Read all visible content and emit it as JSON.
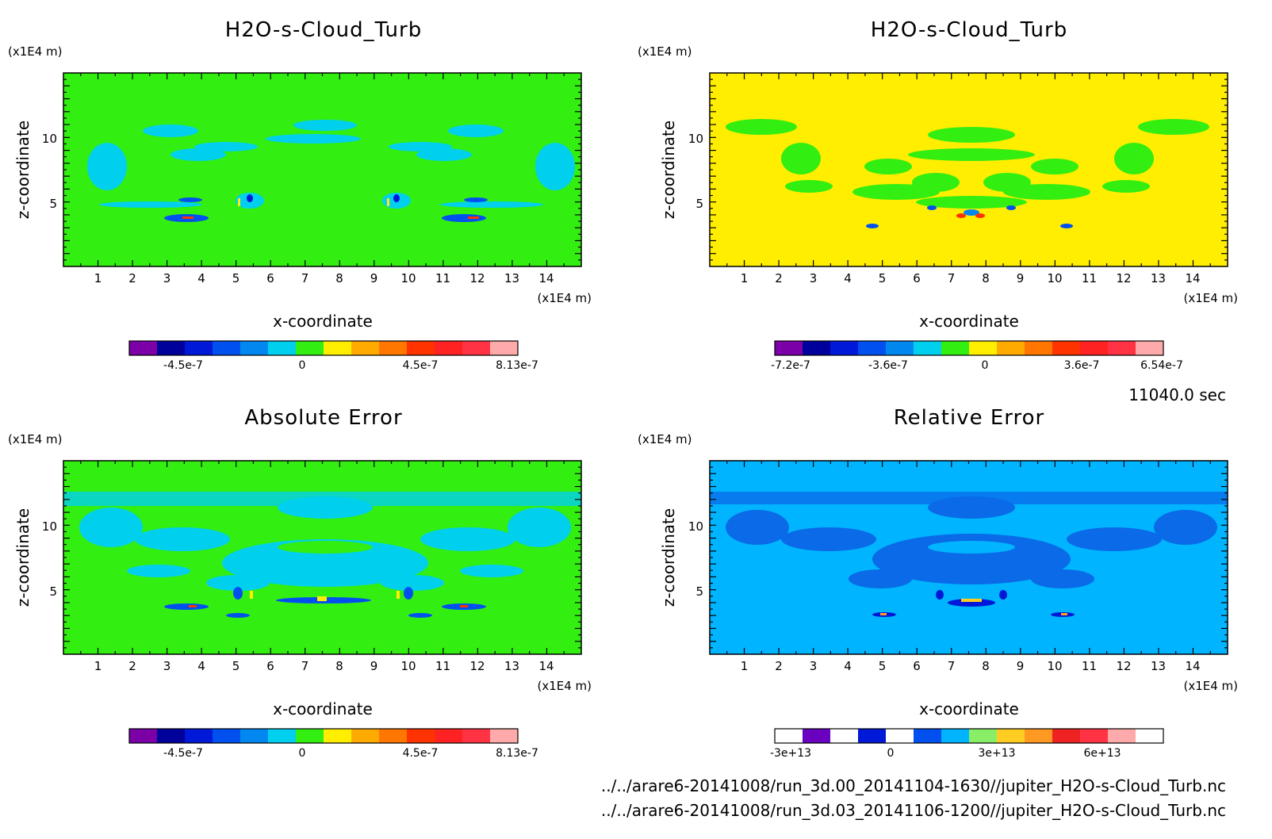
{
  "time_label": "11040.0 sec",
  "footer": {
    "line1": "../../arare6-20141008/run_3d.00_20141104-1630//jupiter_H2O-s-Cloud_Turb.nc",
    "line2": "../../arare6-20141008/run_3d.03_20141106-1200//jupiter_H2O-s-Cloud_Turb.nc"
  },
  "chart_data": [
    {
      "type": "heatmap",
      "title": "H2O-s-Cloud_Turb",
      "xlabel": "x-coordinate",
      "ylabel": "z-coordinate",
      "x_unit": "(x1E4 m)",
      "y_unit": "(x1E4 m)",
      "xlim": [
        0,
        15
      ],
      "ylim": [
        0,
        15
      ],
      "x_ticks": [
        "1",
        "2",
        "3",
        "4",
        "5",
        "6",
        "7",
        "8",
        "9",
        "10",
        "11",
        "12",
        "13",
        "14"
      ],
      "y_ticks": [
        "5",
        "10"
      ],
      "background_color": "#33ee11",
      "colorbar": {
        "colors": [
          "#7b00a8",
          "#00009a",
          "#0018d8",
          "#0050f0",
          "#0088f0",
          "#00d0ee",
          "#33ee11",
          "#ffee00",
          "#ffaa00",
          "#ff7700",
          "#ff3300",
          "#ff2222",
          "#ff3344",
          "#ffaaaa"
        ],
        "labels": [
          "-4.5e-7",
          "0",
          "4.5e-7",
          "8.13e-7"
        ]
      }
    },
    {
      "type": "heatmap",
      "title": "H2O-s-Cloud_Turb",
      "xlabel": "x-coordinate",
      "ylabel": "z-coordinate",
      "x_unit": "(x1E4 m)",
      "y_unit": "(x1E4 m)",
      "xlim": [
        0,
        15
      ],
      "ylim": [
        0,
        15
      ],
      "x_ticks": [
        "1",
        "2",
        "3",
        "4",
        "5",
        "6",
        "7",
        "8",
        "9",
        "10",
        "11",
        "12",
        "13",
        "14"
      ],
      "y_ticks": [
        "5",
        "10"
      ],
      "background_color": "#ffee00",
      "colorbar": {
        "colors": [
          "#7b00a8",
          "#00009a",
          "#0018d8",
          "#0050f0",
          "#0088f0",
          "#00d0ee",
          "#33ee11",
          "#ffee00",
          "#ffaa00",
          "#ff7700",
          "#ff3300",
          "#ff2222",
          "#ff3344",
          "#ffaaaa"
        ],
        "labels": [
          "-7.2e-7",
          "-3.6e-7",
          "0",
          "3.6e-7",
          "6.54e-7"
        ]
      }
    },
    {
      "type": "heatmap",
      "title": "Absolute Error",
      "xlabel": "x-coordinate",
      "ylabel": "z-coordinate",
      "x_unit": "(x1E4 m)",
      "y_unit": "(x1E4 m)",
      "xlim": [
        0,
        15
      ],
      "ylim": [
        0,
        15
      ],
      "x_ticks": [
        "1",
        "2",
        "3",
        "4",
        "5",
        "6",
        "7",
        "8",
        "9",
        "10",
        "11",
        "12",
        "13",
        "14"
      ],
      "y_ticks": [
        "5",
        "10"
      ],
      "background_color": "#33ee11",
      "colorbar": {
        "colors": [
          "#7b00a8",
          "#00009a",
          "#0018d8",
          "#0050f0",
          "#0088f0",
          "#00d0ee",
          "#33ee11",
          "#ffee00",
          "#ffaa00",
          "#ff7700",
          "#ff3300",
          "#ff2222",
          "#ff3344",
          "#ffaaaa"
        ],
        "labels": [
          "-4.5e-7",
          "0",
          "4.5e-7",
          "8.13e-7"
        ]
      }
    },
    {
      "type": "heatmap",
      "title": "Relative Error",
      "xlabel": "x-coordinate",
      "ylabel": "z-coordinate",
      "x_unit": "(x1E4 m)",
      "y_unit": "(x1E4 m)",
      "xlim": [
        0,
        15
      ],
      "ylim": [
        0,
        15
      ],
      "x_ticks": [
        "1",
        "2",
        "3",
        "4",
        "5",
        "6",
        "7",
        "8",
        "9",
        "10",
        "11",
        "12",
        "13",
        "14"
      ],
      "y_ticks": [
        "5",
        "10"
      ],
      "background_color": "#00b4ff",
      "colorbar": {
        "colors": [
          "#ffffff",
          "#6a00c0",
          "#ffffff",
          "#0018d8",
          "#ffffff",
          "#0050f0",
          "#00b4ff",
          "#88ee66",
          "#ffcc22",
          "#ff9922",
          "#ee2222",
          "#ff3344",
          "#ffaaaa",
          "#ffffff"
        ],
        "labels": [
          "-3e+13",
          "0",
          "3e+13",
          "6e+13"
        ]
      }
    }
  ]
}
